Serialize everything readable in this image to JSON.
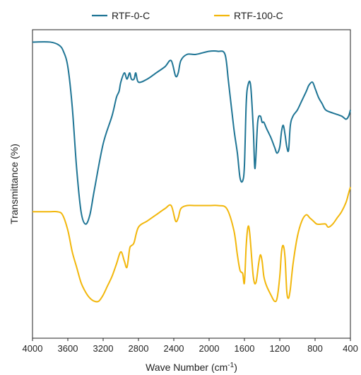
{
  "chart_data": {
    "type": "line",
    "title": "",
    "xlabel": "Wave Number (cm",
    "xlabel_sup": "-1",
    "xlabel_close": ")",
    "ylabel": "Transmittance (%)",
    "x_reversed": true,
    "xlim": [
      4000,
      400
    ],
    "ylim": [
      0,
      100
    ],
    "x_ticks": [
      4000,
      3600,
      3200,
      2800,
      2400,
      2000,
      1600,
      1200,
      800,
      400
    ],
    "x_tick_labels": [
      "4000",
      "3600",
      "3200",
      "2800",
      "2400",
      "2000",
      "1600",
      "1200",
      "800",
      "400"
    ],
    "y_tick_labels_shown": false,
    "grid": false,
    "legend_position": "top-center",
    "series": [
      {
        "name": "RTF-0-C",
        "color": "#1f7595",
        "x": [
          4000,
          3800,
          3700,
          3650,
          3600,
          3550,
          3500,
          3450,
          3400,
          3350,
          3300,
          3200,
          3100,
          3050,
          3020,
          3000,
          2960,
          2930,
          2900,
          2880,
          2850,
          2830,
          2800,
          2700,
          2600,
          2500,
          2430,
          2380,
          2350,
          2320,
          2250,
          2150,
          2000,
          1900,
          1820,
          1780,
          1720,
          1680,
          1650,
          1620,
          1600,
          1580,
          1560,
          1530,
          1500,
          1480,
          1450,
          1420,
          1400,
          1380,
          1350,
          1300,
          1260,
          1230,
          1200,
          1180,
          1160,
          1140,
          1120,
          1100,
          1080,
          1050,
          1000,
          950,
          900,
          870,
          830,
          800,
          760,
          720,
          680,
          600,
          500,
          450,
          420,
          400
        ],
        "y": [
          96,
          96,
          95,
          93,
          88,
          75,
          55,
          41,
          37,
          40,
          48,
          63,
          72,
          78,
          80,
          83,
          86,
          84,
          86,
          84,
          84,
          86,
          83,
          84,
          86,
          88,
          90,
          85,
          86,
          90,
          92,
          92,
          93,
          93,
          92,
          83,
          68,
          60,
          52,
          51,
          56,
          76,
          82,
          82,
          68,
          55,
          70,
          72,
          70,
          70,
          68,
          65,
          62,
          60,
          62,
          67,
          69,
          66,
          62,
          61,
          69,
          72,
          74,
          77,
          80,
          82,
          83,
          81,
          78,
          76,
          74,
          73,
          72,
          71,
          72,
          74
        ]
      },
      {
        "name": "RTF-100-C",
        "color": "#f2b70c",
        "x": [
          4000,
          3800,
          3720,
          3660,
          3600,
          3550,
          3500,
          3450,
          3400,
          3350,
          3300,
          3250,
          3200,
          3150,
          3100,
          3050,
          3000,
          2960,
          2930,
          2900,
          2880,
          2850,
          2800,
          2700,
          2600,
          2500,
          2430,
          2380,
          2350,
          2320,
          2250,
          2150,
          2000,
          1900,
          1800,
          1720,
          1680,
          1650,
          1620,
          1600,
          1580,
          1560,
          1540,
          1500,
          1470,
          1440,
          1420,
          1400,
          1380,
          1350,
          1300,
          1260,
          1230,
          1200,
          1180,
          1160,
          1140,
          1120,
          1100,
          1080,
          1050,
          1000,
          950,
          900,
          860,
          820,
          780,
          720,
          680,
          650,
          600,
          550,
          500,
          450,
          420,
          400
        ],
        "y": [
          41,
          41,
          41,
          40,
          35,
          28,
          23,
          18,
          15,
          13,
          12,
          12,
          14,
          17,
          20,
          24,
          28,
          25,
          23,
          29,
          30,
          31,
          36,
          38,
          40,
          42,
          43,
          38,
          39,
          42,
          43,
          43,
          43,
          43,
          42,
          35,
          27,
          22,
          21,
          18,
          30,
          36,
          34,
          20,
          18,
          24,
          27,
          25,
          20,
          17,
          14,
          12,
          13,
          20,
          28,
          30,
          26,
          15,
          13,
          16,
          24,
          33,
          38,
          40,
          39,
          38,
          37,
          37,
          37,
          36,
          37,
          39,
          41,
          44,
          47,
          49
        ]
      }
    ]
  }
}
